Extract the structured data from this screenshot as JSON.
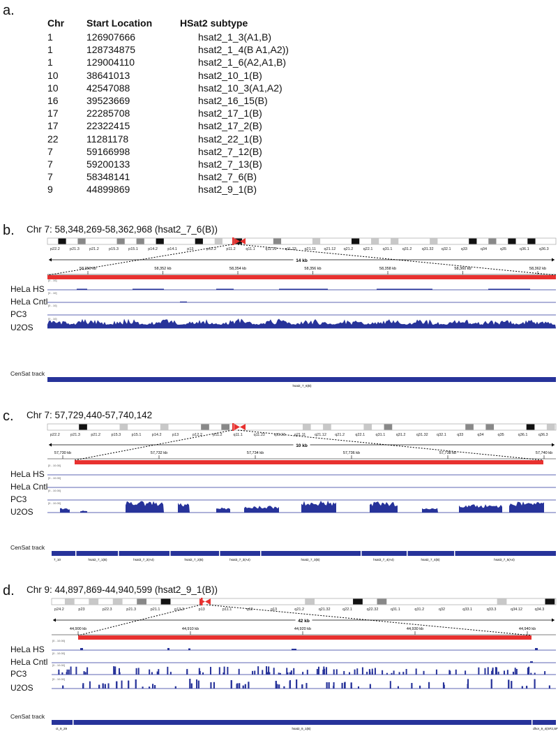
{
  "table": {
    "panel_letter": "a.",
    "headers": {
      "chr": "Chr",
      "start": "Start Location",
      "subtype": "HSat2 subtype"
    },
    "rows": [
      {
        "chr": "1",
        "start": "126907666",
        "subtype": "hsat2_1_3(A1,B)"
      },
      {
        "chr": "1",
        "start": "128734875",
        "subtype": "hsat2_1_4(B A1,A2))"
      },
      {
        "chr": "1",
        "start": "129004110",
        "subtype": "hsat2_1_6(A2,A1,B)"
      },
      {
        "chr": "10",
        "start": "38641013",
        "subtype": "hsat2_10_1(B)"
      },
      {
        "chr": "10",
        "start": "42547088",
        "subtype": "hsat2_10_3(A1,A2)"
      },
      {
        "chr": "16",
        "start": "39523669",
        "subtype": "hsat2_16_15(B)"
      },
      {
        "chr": "17",
        "start": "22285708",
        "subtype": "hsat2_17_1(B)"
      },
      {
        "chr": "17",
        "start": "22322415",
        "subtype": "hsat2_17_2(B)"
      },
      {
        "chr": "22",
        "start": "11281178",
        "subtype": "hsat2_22_1(B)"
      },
      {
        "chr": "7",
        "start": "59166998",
        "subtype": "hsat2_7_12(B)"
      },
      {
        "chr": "7",
        "start": "59200133",
        "subtype": "hsat2_7_13(B)"
      },
      {
        "chr": "7",
        "start": "58348141",
        "subtype": "hsat2_7_6(B)"
      },
      {
        "chr": "9",
        "start": "44899869",
        "subtype": "hsat2_9_1(B)"
      }
    ]
  },
  "panels": {
    "b": {
      "letter": "b.",
      "locus": "Chr 7: 58,348,269-58,362,968  (hsat2_7_6(B))",
      "bands": [
        "p22.2",
        "p21.3",
        "p21.2",
        "p15.3",
        "p15.1",
        "p14.2",
        "p14.1",
        "p13",
        "p12.2",
        "p11.2",
        "q11.1",
        "q11.22",
        "q11.23",
        "q21.11",
        "q21.12",
        "q21.2",
        "q22.1",
        "q31.1",
        "q31.2",
        "q31.32",
        "q32.1",
        "q33",
        "q34",
        "q35",
        "q36.1",
        "q36.3"
      ],
      "span_label": "14 kb",
      "ticks": [
        "58,350 kb",
        "58,352 kb",
        "58,354 kb",
        "58,356 kb",
        "58,358 kb",
        "58,360 kb",
        "58,362 kb"
      ],
      "tracks": [
        "HeLa HS",
        "HeLa Cntl",
        "PC3",
        "U2OS"
      ],
      "range_label": "[0 - 10]",
      "censat_label": "CenSat track",
      "censat_features": [
        "hsat2_7_6(B)"
      ]
    },
    "c": {
      "letter": "c.",
      "locus": "Chr 7: 57,729,440-57,740,142",
      "bands": [
        "p22.2",
        "p21.3",
        "p21.2",
        "p15.3",
        "p15.1",
        "p14.2",
        "p13",
        "p12.2",
        "p11.2",
        "q11.1",
        "q11.22",
        "q11.23",
        "q21.11",
        "q21.12",
        "q21.2",
        "q22.1",
        "q31.1",
        "q31.2",
        "q31.32",
        "q32.1",
        "q33",
        "q34",
        "q35",
        "q36.1",
        "q36.3"
      ],
      "span_label": "10 kb",
      "ticks": [
        "57,730 kb",
        "57,732 kb",
        "57,734 kb",
        "57,736 kb",
        "57,738 kb",
        "57,740 kb"
      ],
      "tracks": [
        "HeLa HS",
        "HeLa Cntl",
        "PC3",
        "U2OS"
      ],
      "range_label": "[0 - 10.00]",
      "censat_label": "CenSat track",
      "censat_features": [
        "7_10",
        "hsat2_7_1(B)",
        "hsat3_7_2(A4)",
        "hsat2_7_2(B)",
        "hsat3_7_3(A4)",
        "hsat2_7_3(B)",
        "hsat3_7_4(A4)",
        "hsat2_7_4(B)",
        "hsat3_7_5(A4)"
      ]
    },
    "d": {
      "letter": "d.",
      "locus": "Chr 9: 44,897,869-44,940,599 (hsat2_9_1(B))",
      "bands": [
        "p24.2",
        "p23",
        "p22.3",
        "p21.3",
        "p21.1",
        "p13.3",
        "p13",
        "p11.1",
        "q12",
        "q13",
        "q21.2",
        "q21.32",
        "q22.1",
        "q22.32",
        "q31.1",
        "q31.2",
        "q32",
        "q33.1",
        "q33.3",
        "q34.12",
        "q34.3"
      ],
      "span_label": "42 kb",
      "ticks": [
        "44,900 kb",
        "44,910 kb",
        "44,920 kb",
        "44,930 kb",
        "44,940 kb"
      ],
      "tracks": [
        "HeLa HS",
        "HeLa Cntl",
        "PC3",
        "U2OS"
      ],
      "range_label": "[0 - 10.00]",
      "censat_label": "CenSat track",
      "censat_features": [
        "ct_9_29",
        "hsat2_9_1(B)",
        "dhor_9_4(SF2,SF"
      ]
    }
  },
  "colors": {
    "highlight": "#e8312f",
    "signal": "#27339a",
    "ideogram_dark": "#111111",
    "ideogram_mid": "#888888",
    "ideogram_light": "#c8c8c8"
  }
}
